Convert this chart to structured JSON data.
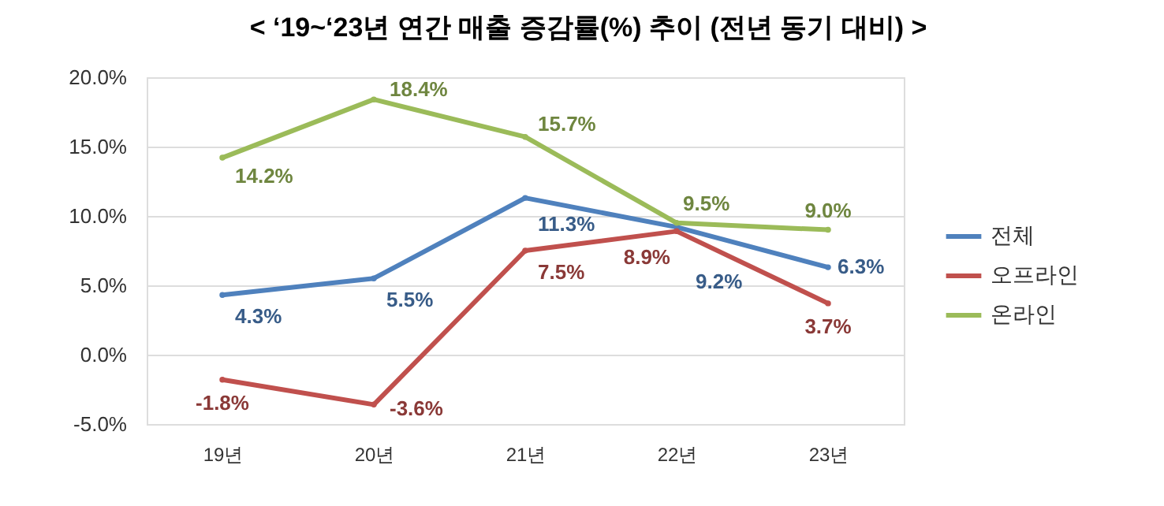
{
  "chart_data": {
    "type": "line",
    "title": "< ‘19~‘23년 연간 매출 증감률(%) 추이 (전년 동기 대비) >",
    "categories": [
      "19년",
      "20년",
      "21년",
      "22년",
      "23년"
    ],
    "series": [
      {
        "name": "전체",
        "color": "#4f81bd",
        "values": [
          4.3,
          5.5,
          11.3,
          9.2,
          6.3
        ],
        "value_labels": [
          "4.3%",
          "5.5%",
          "11.3%",
          "9.2%",
          "6.3%"
        ]
      },
      {
        "name": "오프라인",
        "color": "#c0504d",
        "values": [
          -1.8,
          -3.6,
          7.5,
          8.9,
          3.7
        ],
        "value_labels": [
          "-1.8%",
          "-3.6%",
          "7.5%",
          "8.9%",
          "3.7%"
        ]
      },
      {
        "name": "온라인",
        "color": "#9bbb59",
        "values": [
          14.2,
          18.4,
          15.7,
          9.5,
          9.0
        ],
        "value_labels": [
          "14.2%",
          "18.4%",
          "15.7%",
          "9.5%",
          "9.0%"
        ]
      }
    ],
    "ylim": [
      -5,
      20
    ],
    "yticks": [
      {
        "value": -5,
        "label": "-5.0%"
      },
      {
        "value": 0,
        "label": "0.0%"
      },
      {
        "value": 5,
        "label": "5.0%"
      },
      {
        "value": 10,
        "label": "10.0%"
      },
      {
        "value": 15,
        "label": "15.0%"
      },
      {
        "value": 20,
        "label": "20.0%"
      }
    ],
    "grid": "y",
    "legend": "right",
    "marker": "circle",
    "line_style": "solid"
  }
}
